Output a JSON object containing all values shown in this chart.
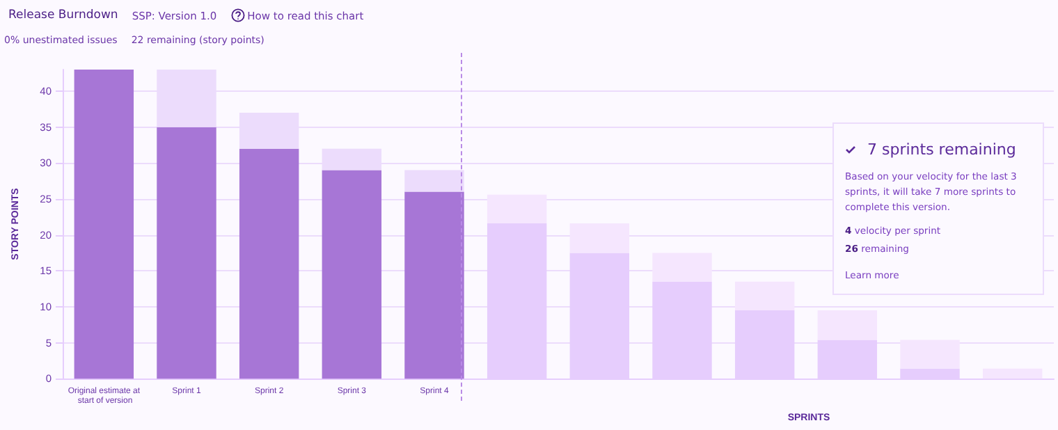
{
  "chart_data": {
    "type": "bar",
    "title": "Release Burndown",
    "subtitle": "SSP: Version 1.0",
    "annotations": [
      "How to read this chart",
      "0% unestimated issues",
      "22 remaining (story points)",
      "7 sprints remaining",
      "Based on your velocity for the last 3 sprints, it will take 7 more sprints to complete this version.",
      "4",
      "velocity per sprint",
      "26",
      "remaining",
      "Learn more"
    ],
    "xlabel": "SPRINTS",
    "ylabel": "STORY POINTS",
    "categories": [
      "Original estimate at start of version",
      "Sprint 1",
      "Sprint 2",
      "Sprint 3",
      "Sprint 4",
      null,
      null,
      null,
      null,
      null,
      null,
      null
    ],
    "stacked": true,
    "series": [
      {
        "colors": [
          "#a776d6",
          "#a776d6",
          "#a776d6",
          "#a776d6",
          "#a776d6",
          "#e6cdfd",
          "#e6cdfd",
          "#e6cdfd",
          "#e6cdfd",
          "#e6cdfd",
          "#e6cdfd",
          "#e6cdfd"
        ],
        "values": [
          43,
          35,
          32,
          29,
          26,
          21.6,
          17.5,
          13.5,
          9.5,
          5.4,
          1.4,
          0
        ]
      },
      {
        "colors": [
          "#ecdcfc",
          "#ecdcfc",
          "#ecdcfc",
          "#ecdcfc",
          "#ecdcfc",
          "#f5e6fe",
          "#f5e6fe",
          "#f5e6fe",
          "#f5e6fe",
          "#f5e6fe",
          "#f5e6fe",
          "#f5e6fe"
        ],
        "values": [
          null,
          8,
          5,
          3,
          3,
          4,
          4.1,
          4,
          4,
          4.1,
          4,
          1.4
        ]
      }
    ],
    "ylim": [
      0,
      43
    ],
    "yticks": [
      0,
      5,
      10,
      15,
      20,
      25,
      30,
      35,
      40
    ],
    "grid": "y"
  }
}
